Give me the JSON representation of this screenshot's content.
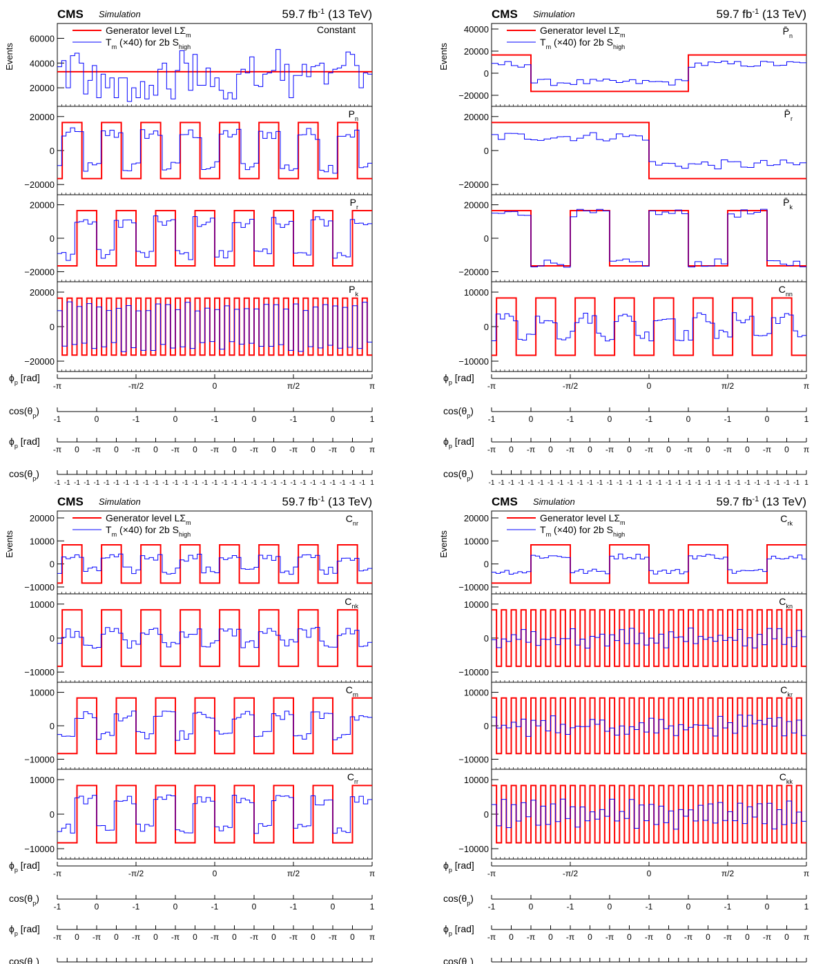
{
  "header": {
    "experiment": "CMS",
    "status": "Simulation",
    "lumi": "59.7 fb",
    "lumi_sup": "-1",
    "energy": " (13 TeV)"
  },
  "y_axis_label": "Events",
  "legend": {
    "gen": {
      "text": "Generator level LΣ",
      "sub": "m"
    },
    "tm": {
      "text": "T",
      "sub_m": "m",
      "mid": " (×40) for 2b S",
      "sub_high": "high"
    }
  },
  "axes_below": {
    "phi_pbar_label": {
      "main": "ϕ",
      "sub": "p",
      "tail": " [rad]"
    },
    "cos_pbar_label": {
      "main": "cos(θ",
      "sub": "p",
      "tail": ")"
    },
    "phi_p_label": {
      "main": "ϕ",
      "sub": "p",
      "tail": " [rad]"
    },
    "cos_p_label": {
      "main": "cos(θ",
      "sub": "p",
      "tail": ")"
    },
    "phi_pbar_ticks": [
      "-π",
      "-π/2",
      "0",
      "π/2",
      "π"
    ],
    "cos_pbar_ticks": [
      "-1",
      "0",
      "-1",
      "0",
      "-1",
      "0",
      "-1",
      "0",
      "1"
    ],
    "phi_p_ticks": [
      "-π",
      "0",
      "-π",
      "0",
      "-π",
      "0",
      "-π",
      "0",
      "-π",
      "0",
      "-π",
      "0",
      "-π",
      "0",
      "-π",
      "0",
      "π"
    ],
    "cos_p_ticks_repeat": [
      "-1"
    ],
    "cos_p_ticks_last": "1"
  },
  "chart_data": [
    {
      "type": "line",
      "figure": "top-left",
      "panels": [
        {
          "label": "Constant",
          "ylim": [
            5000,
            72000
          ],
          "yticks": [
            {
              "v": 20000,
              "t": "20000"
            },
            {
              "v": 40000,
              "t": "40000"
            },
            {
              "v": 60000,
              "t": "60000"
            }
          ],
          "series": [
            {
              "name": "Generator level LΣm",
              "color": "#ff0000",
              "kind": "constant",
              "value": 33000
            },
            {
              "name": "Tm (×40) for 2b Shigh",
              "color": "#0000ff",
              "bins": 72,
              "values": [
                37000,
                42000,
                20000,
                46000,
                48000,
                40000,
                15000,
                26000,
                38000,
                12000,
                31000,
                20000,
                28000,
                12000,
                28000,
                28000,
                9000,
                20000,
                12000,
                25000,
                11000,
                22000,
                14000,
                35000,
                40000,
                19000,
                11000,
                34000,
                50000,
                40000,
                18000,
                47000,
                22000,
                22000,
                36000,
                21000,
                28000,
                18000,
                11000,
                16000,
                11000,
                31000,
                35000,
                32000,
                45000,
                22000,
                21000,
                31000,
                32000,
                34000,
                51000,
                26000,
                39000,
                12000,
                30000,
                30000,
                39000,
                29000,
                37000,
                38000,
                40000,
                23000,
                32000,
                35000,
                36000,
                38000,
                49000,
                47000,
                38000,
                20000,
                32000,
                31000
              ]
            }
          ]
        },
        {
          "label": "Pn",
          "ylim": [
            -26000,
            26000
          ],
          "yticks": [
            {
              "v": -20000,
              "t": "−20000"
            },
            {
              "v": 0,
              "t": "0"
            },
            {
              "v": 20000,
              "t": "20000"
            }
          ],
          "series": [
            {
              "name": "Generator level LΣm",
              "color": "#ff0000",
              "kind": "square",
              "amp": 16500,
              "periods": 8,
              "phase": 0.25,
              "invert": false
            },
            {
              "name": "Tm (×40) for 2b Shigh",
              "color": "#0000ff",
              "bins": 72,
              "scale": 0.6,
              "noise": 3500
            }
          ]
        },
        {
          "label": "Pr",
          "ylim": [
            -26000,
            26000
          ],
          "yticks": [
            {
              "v": -20000,
              "t": "−20000"
            },
            {
              "v": 0,
              "t": "0"
            },
            {
              "v": 20000,
              "t": "20000"
            }
          ],
          "series": [
            {
              "name": "Generator level LΣm",
              "color": "#ff0000",
              "kind": "square",
              "amp": 16500,
              "periods": 8,
              "phase": 0.0,
              "invert": true
            },
            {
              "name": "Tm (×40) for 2b Shigh",
              "color": "#0000ff",
              "bins": 72,
              "scale": 0.6,
              "noise": 3500
            }
          ]
        },
        {
          "label": "Pk",
          "ylim": [
            -26000,
            26000
          ],
          "yticks": [
            {
              "v": -20000,
              "t": "−20000"
            },
            {
              "v": 0,
              "t": "0"
            },
            {
              "v": 20000,
              "t": "20000"
            }
          ],
          "series": [
            {
              "name": "Generator level LΣm",
              "color": "#ff0000",
              "kind": "square",
              "amp": 16500,
              "periods": 32,
              "phase": 0.0,
              "invert": false
            },
            {
              "name": "Tm (×40) for 2b Shigh",
              "color": "#0000ff",
              "bins": 64,
              "scale": 0.7,
              "noise": 3000
            }
          ]
        }
      ]
    },
    {
      "type": "line",
      "figure": "top-right",
      "panels": [
        {
          "label": "P̄n",
          "ylim": [
            -30000,
            45000
          ],
          "yticks": [
            {
              "v": -20000,
              "t": "−20000"
            },
            {
              "v": 0,
              "t": "0"
            },
            {
              "v": 20000,
              "t": "20000"
            },
            {
              "v": 40000,
              "t": "40000"
            }
          ],
          "series": [
            {
              "name": "Generator level LΣm",
              "color": "#ff0000",
              "kind": "square",
              "amp": 16500,
              "periods": 1,
              "phase": 0.25,
              "invert": true
            },
            {
              "name": "Tm (×40) for 2b Shigh",
              "color": "#0000ff",
              "bins": 48,
              "scale": 0.5,
              "noise": 3000
            }
          ]
        },
        {
          "label": "P̄r",
          "ylim": [
            -26000,
            26000
          ],
          "yticks": [
            {
              "v": -20000,
              "t": "−20000"
            },
            {
              "v": 0,
              "t": "0"
            },
            {
              "v": 20000,
              "t": "20000"
            }
          ],
          "series": [
            {
              "name": "Generator level LΣm",
              "color": "#ff0000",
              "kind": "square",
              "amp": 16500,
              "periods": 1,
              "phase": 0.0,
              "invert": false
            },
            {
              "name": "Tm (×40) for 2b Shigh",
              "color": "#0000ff",
              "bins": 48,
              "scale": 0.5,
              "noise": 2800
            }
          ]
        },
        {
          "label": "P̄k",
          "ylim": [
            -26000,
            26000
          ],
          "yticks": [
            {
              "v": -20000,
              "t": "−20000"
            },
            {
              "v": 0,
              "t": "0"
            },
            {
              "v": 20000,
              "t": "20000"
            }
          ],
          "series": [
            {
              "name": "Generator level LΣm",
              "color": "#ff0000",
              "kind": "square",
              "amp": 16500,
              "periods": 4,
              "phase": 0.0,
              "invert": false
            },
            {
              "name": "Tm (×40) for 2b Shigh",
              "color": "#0000ff",
              "bins": 48,
              "scale": 0.9,
              "noise": 2500
            }
          ]
        },
        {
          "label": "Cnn",
          "ylim": [
            -13000,
            13000
          ],
          "yticks": [
            {
              "v": -10000,
              "t": "−10000"
            },
            {
              "v": 0,
              "t": "0"
            },
            {
              "v": 10000,
              "t": "10000"
            }
          ],
          "series": [
            {
              "name": "Generator level LΣm",
              "color": "#ff0000",
              "kind": "square",
              "amp": 8300,
              "periods": 8,
              "phase": 0.25,
              "invert": false
            },
            {
              "name": "Tm (×40) for 2b Shigh",
              "color": "#0000ff",
              "bins": 72,
              "scale": 0.3,
              "noise": 1700
            }
          ]
        }
      ]
    },
    {
      "type": "line",
      "figure": "bottom-left",
      "panels": [
        {
          "label": "Cnr",
          "ylim": [
            -13000,
            23000
          ],
          "yticks": [
            {
              "v": -10000,
              "t": "−10000"
            },
            {
              "v": 0,
              "t": "0"
            },
            {
              "v": 10000,
              "t": "10000"
            },
            {
              "v": 20000,
              "t": "20000"
            }
          ],
          "series": [
            {
              "name": "Generator level LΣm",
              "color": "#ff0000",
              "kind": "square",
              "amp": 8300,
              "periods": 8,
              "phase": 0.25,
              "invert": false
            },
            {
              "name": "Tm (×40) for 2b Shigh",
              "color": "#0000ff",
              "bins": 72,
              "scale": 0.35,
              "noise": 1700
            }
          ]
        },
        {
          "label": "Cnk",
          "ylim": [
            -13000,
            13000
          ],
          "yticks": [
            {
              "v": -10000,
              "t": "−10000"
            },
            {
              "v": 0,
              "t": "0"
            },
            {
              "v": 10000,
              "t": "10000"
            }
          ],
          "series": [
            {
              "name": "Generator level LΣm",
              "color": "#ff0000",
              "kind": "square",
              "amp": 8300,
              "periods": 8,
              "phase": 0.25,
              "invert": false
            },
            {
              "name": "Tm (×40) for 2b Shigh",
              "color": "#0000ff",
              "bins": 72,
              "scale": 0.2,
              "noise": 1500
            }
          ]
        },
        {
          "label": "Crn",
          "ylim": [
            -13000,
            13000
          ],
          "yticks": [
            {
              "v": -10000,
              "t": "−10000"
            },
            {
              "v": 0,
              "t": "0"
            },
            {
              "v": 10000,
              "t": "10000"
            }
          ],
          "series": [
            {
              "name": "Generator level LΣm",
              "color": "#ff0000",
              "kind": "square",
              "amp": 8300,
              "periods": 8,
              "phase": 0.0,
              "invert": true
            },
            {
              "name": "Tm (×40) for 2b Shigh",
              "color": "#0000ff",
              "bins": 72,
              "scale": 0.35,
              "noise": 1500
            }
          ]
        },
        {
          "label": "Crr",
          "ylim": [
            -13000,
            13000
          ],
          "yticks": [
            {
              "v": -10000,
              "t": "−10000"
            },
            {
              "v": 0,
              "t": "0"
            },
            {
              "v": 10000,
              "t": "10000"
            }
          ],
          "series": [
            {
              "name": "Generator level LΣm",
              "color": "#ff0000",
              "kind": "square",
              "amp": 8300,
              "periods": 8,
              "phase": 0.0,
              "invert": true
            },
            {
              "name": "Tm (×40) for 2b Shigh",
              "color": "#0000ff",
              "bins": 72,
              "scale": 0.5,
              "noise": 1500
            }
          ]
        }
      ]
    },
    {
      "type": "line",
      "figure": "bottom-right",
      "panels": [
        {
          "label": "Crk",
          "ylim": [
            -13000,
            23000
          ],
          "yticks": [
            {
              "v": -10000,
              "t": "−10000"
            },
            {
              "v": 0,
              "t": "0"
            },
            {
              "v": 10000,
              "t": "10000"
            },
            {
              "v": 20000,
              "t": "20000"
            }
          ],
          "series": [
            {
              "name": "Generator level LΣm",
              "color": "#ff0000",
              "kind": "square",
              "amp": 8300,
              "periods": 4,
              "phase": 0.0,
              "invert": true
            },
            {
              "name": "Tm (×40) for 2b Shigh",
              "color": "#0000ff",
              "bins": 72,
              "scale": 0.4,
              "noise": 1200
            }
          ]
        },
        {
          "label": "Ckn",
          "ylim": [
            -13000,
            13000
          ],
          "yticks": [
            {
              "v": -10000,
              "t": "−10000"
            },
            {
              "v": 0,
              "t": "0"
            },
            {
              "v": 10000,
              "t": "10000"
            }
          ],
          "series": [
            {
              "name": "Generator level LΣm",
              "color": "#ff0000",
              "kind": "square",
              "amp": 8300,
              "periods": 32,
              "phase": 0.0,
              "invert": false
            },
            {
              "name": "Tm (×40) for 2b Shigh",
              "color": "#0000ff",
              "bins": 64,
              "scale": 0.15,
              "noise": 1800
            }
          ]
        },
        {
          "label": "Ckr",
          "ylim": [
            -13000,
            13000
          ],
          "yticks": [
            {
              "v": -10000,
              "t": "−10000"
            },
            {
              "v": 0,
              "t": "0"
            },
            {
              "v": 10000,
              "t": "10000"
            }
          ],
          "series": [
            {
              "name": "Generator level LΣm",
              "color": "#ff0000",
              "kind": "square",
              "amp": 8300,
              "periods": 32,
              "phase": 0.0,
              "invert": false
            },
            {
              "name": "Tm (×40) for 2b Shigh",
              "color": "#0000ff",
              "bins": 64,
              "scale": 0.15,
              "noise": 2000
            }
          ]
        },
        {
          "label": "Ckk",
          "ylim": [
            -13000,
            13000
          ],
          "yticks": [
            {
              "v": -10000,
              "t": "−10000"
            },
            {
              "v": 0,
              "t": "0"
            },
            {
              "v": 10000,
              "t": "10000"
            }
          ],
          "series": [
            {
              "name": "Generator level LΣm",
              "color": "#ff0000",
              "kind": "square",
              "amp": 8300,
              "periods": 32,
              "phase": 0.0,
              "invert": false
            },
            {
              "name": "Tm (×40) for 2b Shigh",
              "color": "#0000ff",
              "bins": 64,
              "scale": 0.3,
              "noise": 2000
            }
          ]
        }
      ]
    }
  ]
}
